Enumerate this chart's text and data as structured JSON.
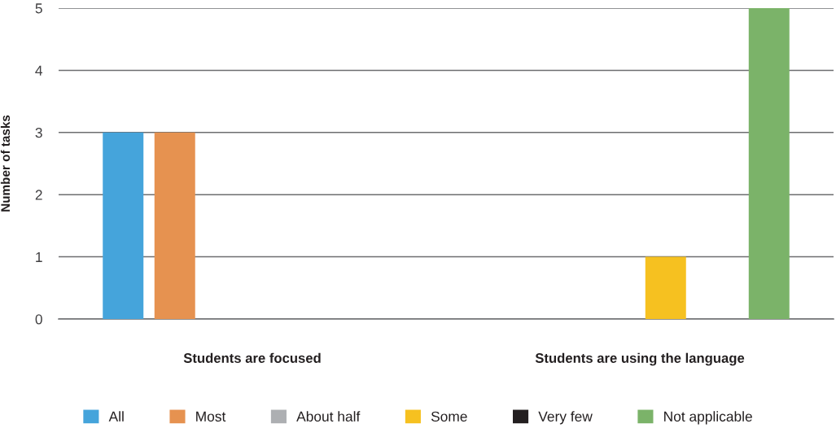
{
  "chart_data": {
    "type": "bar",
    "ylabel": "Number of tasks",
    "categories": [
      "Students are focused",
      "Students are using the language"
    ],
    "series": [
      {
        "name": "All",
        "color": "#45a4db",
        "values": [
          3,
          0
        ]
      },
      {
        "name": "Most",
        "color": "#e69250",
        "values": [
          3,
          0
        ]
      },
      {
        "name": "About half",
        "color": "#adafb2",
        "values": [
          0,
          0
        ]
      },
      {
        "name": "Some",
        "color": "#f6c120",
        "values": [
          0,
          1
        ]
      },
      {
        "name": "Very few",
        "color": "#231f20",
        "values": [
          0,
          0
        ]
      },
      {
        "name": "Not applicable",
        "color": "#7bb369",
        "values": [
          0,
          5
        ]
      }
    ],
    "ylim": [
      0,
      5
    ],
    "yticks": [
      0,
      1,
      2,
      3,
      4,
      5
    ],
    "grid": "y",
    "legend": "bottom"
  }
}
